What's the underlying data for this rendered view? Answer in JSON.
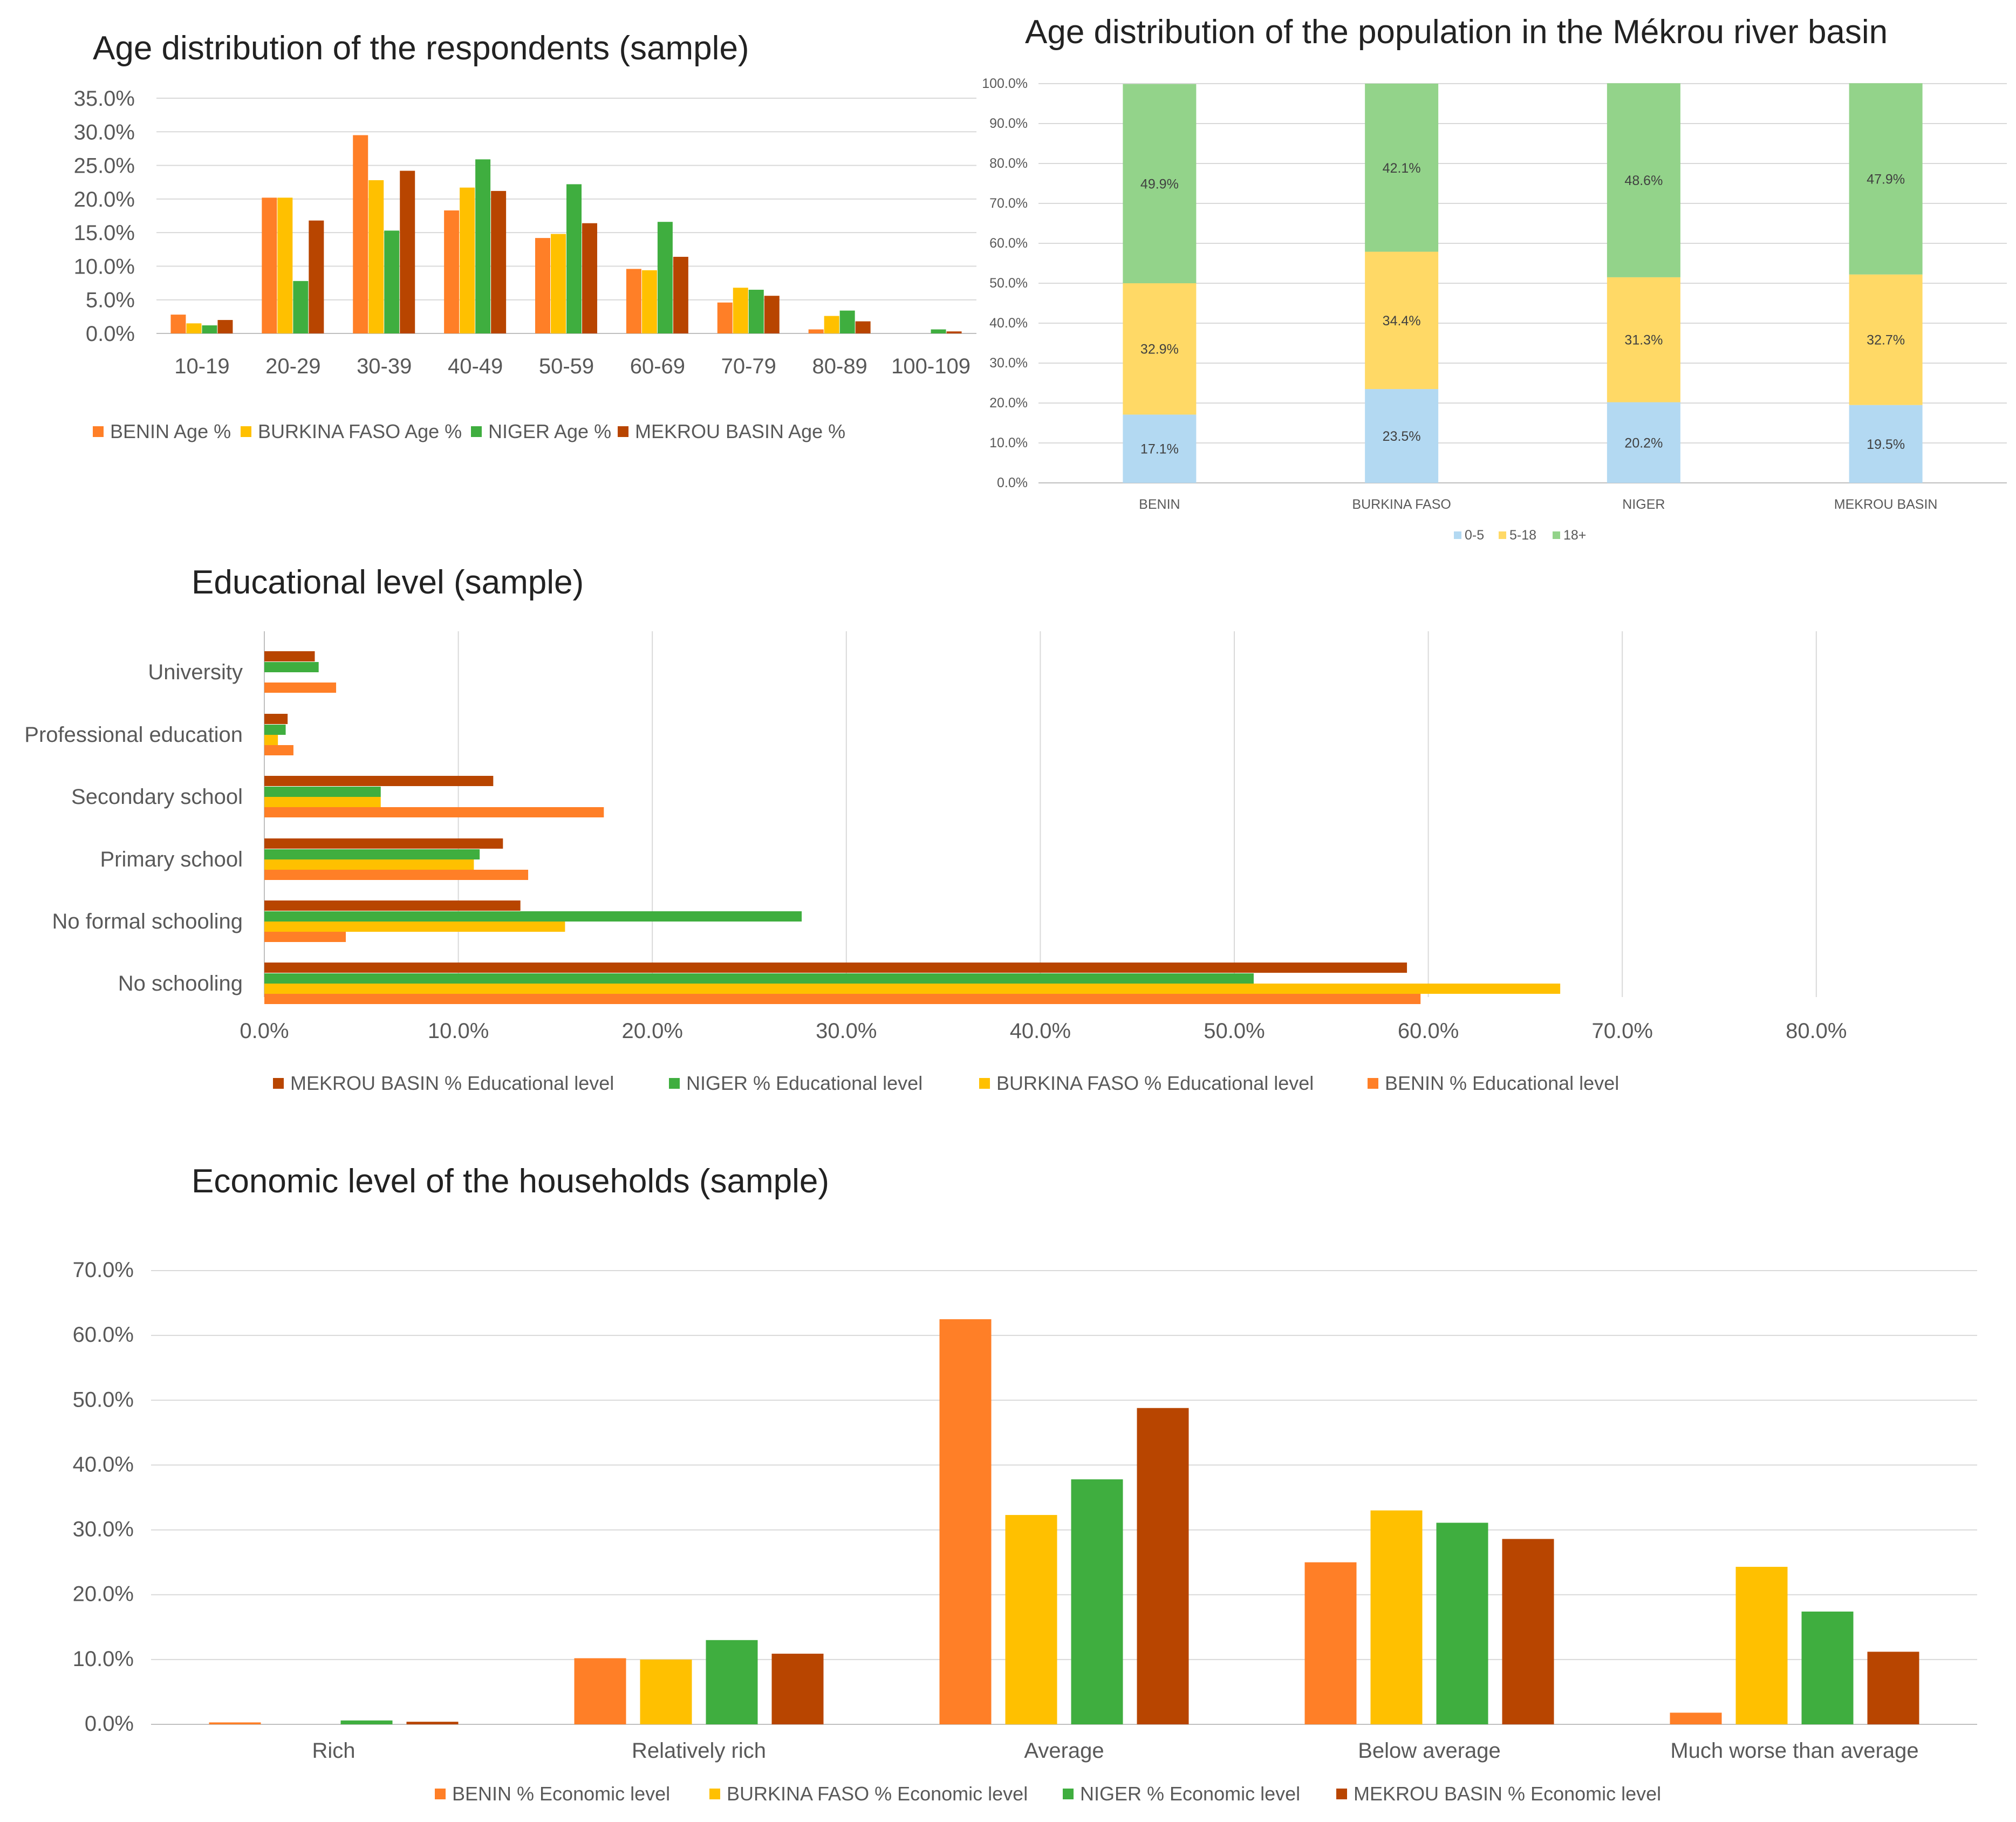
{
  "colors": {
    "benin": "#FF7F27",
    "burkina": "#FFC000",
    "niger": "#3FAE3F",
    "mekrou": "#B84500",
    "age0_5": "#B3D9F2",
    "age5_18": "#FFD966",
    "age18": "#93D38A",
    "grid": "#D9D9D9",
    "axis": "#BFBFBF"
  },
  "chart_data": [
    {
      "id": "respondent_age",
      "type": "bar",
      "title": "Age distribution of the respondents (sample)",
      "categories": [
        "10-19",
        "20-29",
        "30-39",
        "40-49",
        "50-59",
        "60-69",
        "70-79",
        "80-89",
        "100-109"
      ],
      "y_ticks": [
        "0.0%",
        "5.0%",
        "10.0%",
        "15.0%",
        "20.0%",
        "25.0%",
        "30.0%",
        "35.0%"
      ],
      "ylim": [
        0,
        35
      ],
      "series": [
        {
          "name": "BENIN Age %",
          "color_key": "benin",
          "values": [
            2.8,
            20.2,
            29.5,
            18.3,
            14.2,
            9.6,
            4.6,
            0.6,
            0.0
          ]
        },
        {
          "name": "BURKINA FASO Age %",
          "color_key": "burkina",
          "values": [
            1.5,
            20.2,
            22.8,
            21.7,
            14.8,
            9.4,
            6.8,
            2.6,
            0.0
          ]
        },
        {
          "name": "NIGER Age %",
          "color_key": "niger",
          "values": [
            1.2,
            7.8,
            15.3,
            25.9,
            22.2,
            16.6,
            6.5,
            3.4,
            0.6
          ]
        },
        {
          "name": "MEKROU BASIN Age %",
          "color_key": "mekrou",
          "values": [
            2.0,
            16.8,
            24.2,
            21.2,
            16.4,
            11.4,
            5.6,
            1.8,
            0.3
          ]
        }
      ]
    },
    {
      "id": "population_age",
      "type": "bar",
      "stacked": true,
      "title": "Age distribution of the population in the Mékrou river basin",
      "categories": [
        "BENIN",
        "BURKINA FASO",
        "NIGER",
        "MEKROU BASIN"
      ],
      "y_ticks": [
        "0.0%",
        "10.0%",
        "20.0%",
        "30.0%",
        "40.0%",
        "50.0%",
        "60.0%",
        "70.0%",
        "80.0%",
        "90.0%",
        "100.0%"
      ],
      "ylim": [
        0,
        100
      ],
      "series": [
        {
          "name": "0-5",
          "color_key": "age0_5",
          "values": [
            17.1,
            23.5,
            20.2,
            19.5
          ],
          "labels": [
            "17.1%",
            "23.5%",
            "20.2%",
            "19.5%"
          ]
        },
        {
          "name": "5-18",
          "color_key": "age5_18",
          "values": [
            32.9,
            34.4,
            31.3,
            32.7
          ],
          "labels": [
            "32.9%",
            "34.4%",
            "31.3%",
            "32.7%"
          ]
        },
        {
          "name": "18+",
          "color_key": "age18",
          "values": [
            49.9,
            42.1,
            48.6,
            47.9
          ],
          "labels": [
            "49.9%",
            "42.1%",
            "48.6%",
            "47.9%"
          ]
        }
      ]
    },
    {
      "id": "education",
      "type": "bar",
      "orientation": "horizontal",
      "title": "Educational level (sample)",
      "categories": [
        "University",
        "Professional education",
        "Secondary school",
        "Primary school",
        "No formal schooling",
        "No schooling"
      ],
      "x_ticks": [
        "0.0%",
        "10.0%",
        "20.0%",
        "30.0%",
        "40.0%",
        "50.0%",
        "60.0%",
        "70.0%",
        "80.0%"
      ],
      "xlim": [
        0,
        80
      ],
      "series": [
        {
          "name": "MEKROU BASIN % Educational level",
          "color_key": "mekrou",
          "values": [
            2.6,
            1.2,
            11.8,
            12.3,
            13.2,
            58.9
          ]
        },
        {
          "name": "NIGER % Educational level",
          "color_key": "niger",
          "values": [
            2.8,
            1.1,
            6.0,
            11.1,
            27.7,
            51.0
          ]
        },
        {
          "name": "BURKINA FASO % Educational level",
          "color_key": "burkina",
          "values": [
            0.0,
            0.7,
            6.0,
            10.8,
            15.5,
            66.8
          ]
        },
        {
          "name": "BENIN % Educational level",
          "color_key": "benin",
          "values": [
            3.7,
            1.5,
            17.5,
            13.6,
            4.2,
            59.6
          ]
        }
      ]
    },
    {
      "id": "economic",
      "type": "bar",
      "title": "Economic level of the households (sample)",
      "categories": [
        "Rich",
        "Relatively rich",
        "Average",
        "Below average",
        "Much worse than average"
      ],
      "y_ticks": [
        "0.0%",
        "10.0%",
        "20.0%",
        "30.0%",
        "40.0%",
        "50.0%",
        "60.0%",
        "70.0%"
      ],
      "ylim": [
        0,
        70
      ],
      "series": [
        {
          "name": "BENIN % Economic level",
          "color_key": "benin",
          "values": [
            0.3,
            10.2,
            62.5,
            25.0,
            1.8
          ]
        },
        {
          "name": "BURKINA FASO % Economic level",
          "color_key": "burkina",
          "values": [
            0.0,
            10.0,
            32.3,
            33.0,
            24.3
          ]
        },
        {
          "name": "NIGER % Economic level",
          "color_key": "niger",
          "values": [
            0.6,
            13.0,
            37.8,
            31.1,
            17.4
          ]
        },
        {
          "name": "MEKROU BASIN % Economic level",
          "color_key": "mekrou",
          "values": [
            0.4,
            10.9,
            48.8,
            28.6,
            11.2
          ]
        }
      ]
    }
  ]
}
